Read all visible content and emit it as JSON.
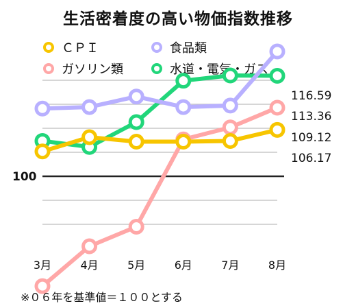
{
  "colors": {
    "cpi": "#f7c500",
    "food": "#b8b0ff",
    "gas": "#ffa7a7",
    "utilities": "#21d67a"
  },
  "chart_data": {
    "type": "line",
    "title": "生活密着度の高い物価指数推移",
    "categories": [
      "3月",
      "4月",
      "5月",
      "6月",
      "7月",
      "8月"
    ],
    "baseline_label": "100",
    "grid": true,
    "legend_position": "top",
    "series": [
      {
        "name": "ＣＰＩ",
        "key": "cpi",
        "values": [
          103.3,
          105.2,
          104.6,
          104.6,
          104.7,
          106.17
        ],
        "end_label": "106.17"
      },
      {
        "name": "食品類",
        "key": "food",
        "values": [
          109.0,
          109.2,
          110.6,
          109.2,
          109.4,
          116.59
        ],
        "end_label": "116.59"
      },
      {
        "name": "ガソリン類",
        "key": "gas",
        "values": [
          85.4,
          90.7,
          93.3,
          104.9,
          106.5,
          109.12
        ],
        "end_label": "109.12"
      },
      {
        "name": "水道・電気・ガス",
        "key": "utilities",
        "values": [
          104.7,
          103.9,
          107.2,
          112.7,
          113.4,
          113.36
        ],
        "end_label": "113.36"
      }
    ],
    "note": "※０６年を基準値＝１００とする"
  }
}
